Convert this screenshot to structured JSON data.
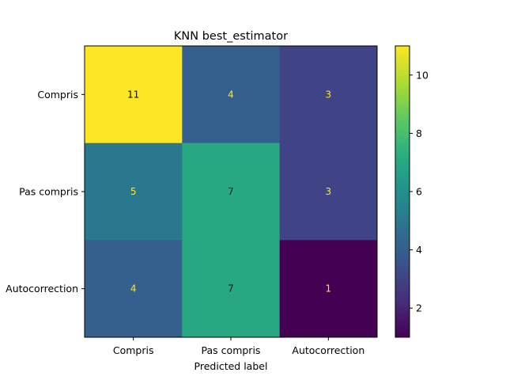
{
  "chart_data": {
    "type": "heatmap",
    "title": "KNN best_estimator",
    "xlabel": "Predicted label",
    "ylabel": "",
    "x_categories": [
      "Compris",
      "Pas compris",
      "Autocorrection"
    ],
    "y_categories": [
      "Compris",
      "Pas compris",
      "Autocorrection"
    ],
    "values": [
      [
        11,
        4,
        3
      ],
      [
        5,
        7,
        3
      ],
      [
        4,
        7,
        1
      ]
    ],
    "colorbar": {
      "colormap": "viridis",
      "range": [
        1,
        11
      ],
      "ticks": [
        "2",
        "4",
        "6",
        "8",
        "10"
      ]
    },
    "text_colors": {
      "on_dark": "#fde725",
      "on_light": "#111111"
    }
  }
}
